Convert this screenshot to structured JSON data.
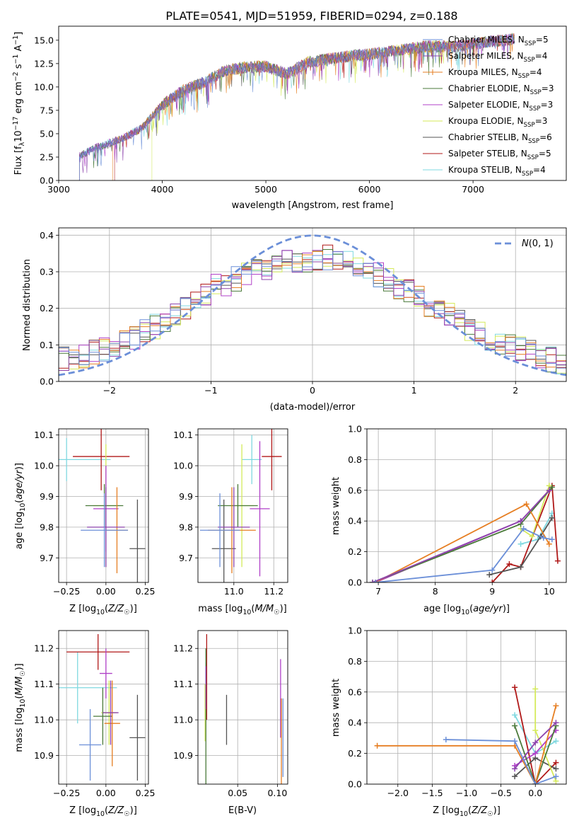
{
  "figure_title": "PLATE=0541, MJD=51959, FIBERID=0294, z=0.188",
  "series_names": [
    "Chabrier MILES, N_SSP=5",
    "Salpeter MILES, N_SSP=4",
    "Kroupa MILES, N_SSP=4",
    "Chabrier ELODIE, N_SSP=3",
    "Salpeter ELODIE, N_SSP=3",
    "Kroupa ELODIE, N_SSP=3",
    "Chabrier STELIB, N_SSP=6",
    "Salpeter STELIB, N_SSP=5",
    "Kroupa STELIB, N_SSP=4"
  ],
  "colors": [
    "#6b8fd8",
    "#8e44ad",
    "#e67e22",
    "#4a7a3a",
    "#b040c8",
    "#d4ea5a",
    "#555555",
    "#b01818",
    "#7fd8e0"
  ],
  "chart_data": [
    {
      "id": "spectrum",
      "type": "line",
      "title": "PLATE=0541, MJD=51959, FIBERID=0294, z=0.188",
      "xlabel": "wavelength [Angstrom, rest frame]",
      "ylabel": "Flux [f_λ 10^-17 erg cm^-2 s^-1 A^-1]",
      "xlim": [
        3000,
        7900
      ],
      "ylim": [
        0,
        16.5
      ],
      "xticks": [
        3000,
        4000,
        5000,
        6000,
        7000
      ],
      "yticks": [
        0.0,
        2.5,
        5.0,
        7.5,
        10.0,
        12.5,
        15.0
      ],
      "legend": "right",
      "x": [
        3200,
        3400,
        3600,
        3800,
        4000,
        4200,
        4400,
        4600,
        4800,
        5000,
        5200,
        5400,
        5600,
        5800,
        6000,
        6200,
        6400,
        6600,
        6800,
        7000,
        7200,
        7400
      ],
      "y": [
        2.6,
        3.7,
        4.4,
        5.6,
        8.1,
        9.6,
        10.5,
        11.7,
        12.1,
        12.2,
        11.4,
        12.6,
        13.0,
        13.3,
        13.5,
        13.8,
        14.1,
        14.4,
        14.3,
        14.6,
        14.9,
        15.1
      ],
      "series_x_start": [
        3200,
        3200,
        3520,
        3200,
        3200,
        3900,
        3200,
        3540,
        3200
      ],
      "series_x_end": [
        7400,
        7400,
        7400,
        7400,
        7400,
        6800,
        7400,
        7400,
        7400
      ]
    },
    {
      "id": "residuals",
      "type": "histogram",
      "xlabel": "(data-model)/error",
      "ylabel": "Normed distribution",
      "xlim": [
        -2.5,
        2.5
      ],
      "ylim": [
        0,
        0.42
      ],
      "xticks": [
        -2,
        -1,
        0,
        1,
        2
      ],
      "yticks": [
        0.0,
        0.1,
        0.2,
        0.3,
        0.4
      ],
      "legend": "top-right",
      "reference_label": "N(0,1)",
      "bin_edges": [
        -2.5,
        -2.4,
        -2.3,
        -2.2,
        -2.1,
        -2.0,
        -1.9,
        -1.8,
        -1.7,
        -1.6,
        -1.5,
        -1.4,
        -1.3,
        -1.2,
        -1.1,
        -1.0,
        -0.9,
        -0.8,
        -0.7,
        -0.6,
        -0.5,
        -0.4,
        -0.3,
        -0.2,
        -0.1,
        0.0,
        0.1,
        0.2,
        0.3,
        0.4,
        0.5,
        0.6,
        0.7,
        0.8,
        0.9,
        1.0,
        1.1,
        1.2,
        1.3,
        1.4,
        1.5,
        1.6,
        1.7,
        1.8,
        1.9,
        2.0,
        2.1,
        2.2,
        2.3,
        2.4,
        2.5
      ],
      "values": [
        0.06,
        0.06,
        0.07,
        0.08,
        0.09,
        0.1,
        0.11,
        0.12,
        0.14,
        0.15,
        0.17,
        0.18,
        0.2,
        0.21,
        0.24,
        0.26,
        0.26,
        0.28,
        0.29,
        0.31,
        0.31,
        0.32,
        0.33,
        0.32,
        0.33,
        0.33,
        0.34,
        0.33,
        0.33,
        0.31,
        0.29,
        0.29,
        0.28,
        0.26,
        0.25,
        0.24,
        0.21,
        0.19,
        0.18,
        0.16,
        0.14,
        0.13,
        0.12,
        0.11,
        0.1,
        0.09,
        0.08,
        0.07,
        0.06,
        0.05
      ]
    },
    {
      "id": "age_vs_Z",
      "type": "errorbar",
      "xlabel": "Z [log10(Z/Z☉)]",
      "ylabel": "age [log10(age/yr)]",
      "xlim": [
        -0.3,
        0.27
      ],
      "ylim": [
        9.62,
        10.12
      ],
      "xticks": [
        -0.25,
        0.0,
        0.25
      ],
      "xticklabels": [
        "−0.25",
        "0.00",
        "0.25"
      ],
      "yticks": [
        9.7,
        9.8,
        9.9,
        10.0,
        10.1
      ],
      "points": [
        {
          "x": -0.01,
          "y": 9.79,
          "xerr": 0.15,
          "yerr": 0.12
        },
        {
          "x": 0.0,
          "y": 9.8,
          "xerr": 0.12,
          "yerr": 0.13
        },
        {
          "x": 0.07,
          "y": 9.79,
          "xerr": 0.07,
          "yerr": 0.14
        },
        {
          "x": -0.01,
          "y": 9.87,
          "xerr": 0.12,
          "yerr": 0.07
        },
        {
          "x": 0.0,
          "y": 9.86,
          "xerr": 0.08,
          "yerr": 0.14
        },
        {
          "x": 0.0,
          "y": 9.87,
          "xerr": 0.08,
          "yerr": 0.2
        },
        {
          "x": 0.2,
          "y": 9.73,
          "xerr": 0.05,
          "yerr": 0.16
        },
        {
          "x": -0.03,
          "y": 10.03,
          "xerr": 0.18,
          "yerr": 0.11
        },
        {
          "x": -0.25,
          "y": 10.02,
          "xerr": 0.28,
          "yerr": 0.07
        }
      ]
    },
    {
      "id": "age_vs_mass",
      "type": "errorbar",
      "xlabel": "mass [log10(M/M☉)]",
      "ylabel": "",
      "xlim": [
        10.82,
        11.27
      ],
      "ylim": [
        9.62,
        10.12
      ],
      "xticks": [
        11.0,
        11.2
      ],
      "xticklabels": [
        "11.0",
        "11.2"
      ],
      "yticks": [
        9.7,
        9.8,
        9.9,
        10.0,
        10.1
      ],
      "points": [
        {
          "x": 10.93,
          "y": 9.79,
          "xerr": 0.1,
          "yerr": 0.12
        },
        {
          "x": 11.0,
          "y": 9.8,
          "xerr": 0.08,
          "yerr": 0.13
        },
        {
          "x": 10.99,
          "y": 9.79,
          "xerr": 0.12,
          "yerr": 0.14
        },
        {
          "x": 11.02,
          "y": 9.87,
          "xerr": 0.1,
          "yerr": 0.07
        },
        {
          "x": 11.13,
          "y": 9.86,
          "xerr": 0.05,
          "yerr": 0.22
        },
        {
          "x": 11.04,
          "y": 9.87,
          "xerr": 0.06,
          "yerr": 0.2
        },
        {
          "x": 10.95,
          "y": 9.73,
          "xerr": 0.06,
          "yerr": 0.16
        },
        {
          "x": 11.19,
          "y": 10.03,
          "xerr": 0.05,
          "yerr": 0.11
        },
        {
          "x": 11.09,
          "y": 10.02,
          "xerr": 0.05,
          "yerr": 0.08
        }
      ]
    },
    {
      "id": "weight_vs_age",
      "type": "line",
      "xlabel": "age [log10(age/yr)]",
      "ylabel": "mass weight",
      "xlim": [
        6.8,
        10.3
      ],
      "ylim": [
        0,
        1.0
      ],
      "xticks": [
        7,
        8,
        9,
        10
      ],
      "yticks": [
        0.0,
        0.2,
        0.4,
        0.6,
        0.8,
        1.0
      ],
      "series": [
        {
          "x": [
            6.95,
            9.0,
            9.55,
            9.9,
            10.05
          ],
          "y": [
            0.0,
            0.08,
            0.35,
            0.29,
            0.28
          ]
        },
        {
          "x": [
            6.9,
            9.5,
            10.0
          ],
          "y": [
            0.0,
            0.4,
            0.6
          ]
        },
        {
          "x": [
            6.95,
            9.6,
            10.0
          ],
          "y": [
            0.0,
            0.51,
            0.25
          ]
        },
        {
          "x": [
            6.9,
            9.5,
            10.05
          ],
          "y": [
            0.0,
            0.38,
            0.62
          ]
        },
        {
          "x": [
            6.95,
            9.5,
            10.0
          ],
          "y": [
            0.0,
            0.4,
            0.6
          ]
        },
        {
          "x": [
            9.5,
            9.7,
            10.0
          ],
          "y": [
            0.35,
            0.3,
            0.63
          ]
        },
        {
          "x": [
            8.95,
            9.5,
            9.85,
            10.05
          ],
          "y": [
            0.05,
            0.1,
            0.3,
            0.42
          ]
        },
        {
          "x": [
            9.0,
            9.3,
            9.5,
            10.05,
            10.15
          ],
          "y": [
            0.0,
            0.12,
            0.1,
            0.63,
            0.14
          ]
        },
        {
          "x": [
            9.5,
            9.8,
            10.05
          ],
          "y": [
            0.25,
            0.28,
            0.45
          ]
        }
      ]
    },
    {
      "id": "mass_vs_Z",
      "type": "errorbar",
      "xlabel": "Z [log10(Z/Z☉)]",
      "ylabel": "mass [log10(M/M☉)]",
      "xlim": [
        -0.3,
        0.27
      ],
      "ylim": [
        10.82,
        11.25
      ],
      "xticks": [
        -0.25,
        0.0,
        0.25
      ],
      "xticklabels": [
        "−0.25",
        "0.00",
        "0.25"
      ],
      "yticks": [
        10.9,
        11.0,
        11.1,
        11.2
      ],
      "points": [
        {
          "x": -0.1,
          "y": 10.93,
          "xerr": 0.07,
          "yerr": 0.1
        },
        {
          "x": 0.03,
          "y": 11.02,
          "xerr": 0.05,
          "yerr": 0.09
        },
        {
          "x": 0.04,
          "y": 10.99,
          "xerr": 0.05,
          "yerr": 0.12
        },
        {
          "x": -0.02,
          "y": 11.01,
          "xerr": 0.06,
          "yerr": 0.08
        },
        {
          "x": 0.0,
          "y": 11.13,
          "xerr": 0.04,
          "yerr": 0.07
        },
        {
          "x": 0.02,
          "y": 11.02,
          "xerr": 0.05,
          "yerr": 0.09
        },
        {
          "x": 0.2,
          "y": 10.95,
          "xerr": 0.05,
          "yerr": 0.12
        },
        {
          "x": -0.05,
          "y": 11.19,
          "xerr": 0.2,
          "yerr": 0.05
        },
        {
          "x": -0.18,
          "y": 11.09,
          "xerr": 0.25,
          "yerr": 0.1
        }
      ]
    },
    {
      "id": "mass_vs_ebv",
      "type": "errorbar",
      "xlabel": "E(B-V)",
      "ylabel": "",
      "xlim": [
        0.0,
        0.113
      ],
      "ylim": [
        10.82,
        11.25
      ],
      "xticks": [
        0.05,
        0.1
      ],
      "xticklabels": [
        "0.05",
        "0.10"
      ],
      "yticks": [
        10.9,
        11.0,
        11.1,
        11.2
      ],
      "points": [
        {
          "x": 0.107,
          "y": 10.95,
          "xerr": 0.0,
          "yerr": 0.11
        },
        {
          "x": 0.01,
          "y": 11.09,
          "xerr": 0.0,
          "yerr": 0.06
        },
        {
          "x": 0.105,
          "y": 10.94,
          "xerr": 0.0,
          "yerr": 0.12
        },
        {
          "x": 0.01,
          "y": 11.01,
          "xerr": 0.0,
          "yerr": 0.19
        },
        {
          "x": 0.104,
          "y": 11.06,
          "xerr": 0.0,
          "yerr": 0.11
        },
        {
          "x": 0.009,
          "y": 11.02,
          "xerr": 0.0,
          "yerr": 0.08
        },
        {
          "x": 0.036,
          "y": 11.0,
          "xerr": 0.0,
          "yerr": 0.07
        },
        {
          "x": 0.011,
          "y": 11.12,
          "xerr": 0.0,
          "yerr": 0.12
        },
        {
          "x": 0.01,
          "y": 11.1,
          "xerr": 0.0,
          "yerr": 0.06
        }
      ]
    },
    {
      "id": "weight_vs_Z",
      "type": "line",
      "xlabel": "Z [log10(Z/Z☉)]",
      "ylabel": "mass weight",
      "xlim": [
        -2.45,
        0.45
      ],
      "ylim": [
        0,
        1.0
      ],
      "xticks": [
        -2.0,
        -1.5,
        -1.0,
        -0.5,
        0.0
      ],
      "xticklabels": [
        "−2.0",
        "−1.5",
        "−1.0",
        "−0.5",
        "0.0"
      ],
      "yticks": [
        0.0,
        0.2,
        0.4,
        0.6,
        0.8,
        1.0
      ],
      "series": [
        {
          "x": [
            -1.3,
            -0.3,
            0.0,
            0.3
          ],
          "y": [
            0.29,
            0.28,
            0.0,
            0.05
          ]
        },
        {
          "x": [
            -0.3,
            0.0,
            0.3
          ],
          "y": [
            0.1,
            0.27,
            0.4
          ]
        },
        {
          "x": [
            -2.3,
            -0.3,
            0.0,
            0.3
          ],
          "y": [
            0.25,
            0.25,
            0.0,
            0.51
          ]
        },
        {
          "x": [
            -0.3,
            0.0,
            0.3
          ],
          "y": [
            0.38,
            0.0,
            0.38
          ]
        },
        {
          "x": [
            -0.3,
            0.0,
            0.3
          ],
          "y": [
            0.12,
            0.2,
            0.35
          ]
        },
        {
          "x": [
            0.0,
            0.0,
            0.3
          ],
          "y": [
            0.62,
            0.35,
            0.02
          ]
        },
        {
          "x": [
            -0.3,
            0.0,
            0.3
          ],
          "y": [
            0.05,
            0.17,
            0.1
          ]
        },
        {
          "x": [
            -0.3,
            0.0,
            0.3
          ],
          "y": [
            0.63,
            0.0,
            0.14
          ]
        },
        {
          "x": [
            -0.3,
            0.0,
            0.3
          ],
          "y": [
            0.45,
            0.2,
            0.28
          ]
        }
      ]
    }
  ]
}
